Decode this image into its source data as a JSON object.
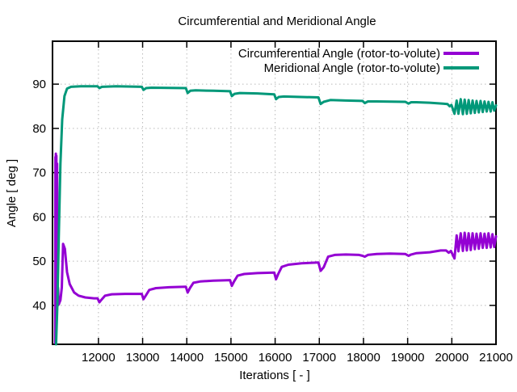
{
  "chart_data": {
    "type": "line",
    "title": "Circumferential and Meridional Angle",
    "xlabel": "Iterations [ - ]",
    "ylabel": "Angle [ deg ]",
    "legend_position": "top-right-inside",
    "grid": "dotted",
    "background_color": "#ffffff",
    "xlim": [
      10960,
      21000
    ],
    "ylim": [
      31.2,
      99.7
    ],
    "x_ticks": [
      12000,
      13000,
      14000,
      15000,
      16000,
      17000,
      18000,
      19000,
      20000,
      21000
    ],
    "y_ticks": [
      40,
      50,
      60,
      70,
      80,
      90
    ],
    "series": [
      {
        "name": "Circumferential Angle (rotor-to-volute)",
        "color": "#9400d3",
        "points": [
          [
            11020,
            31.5
          ],
          [
            11025,
            73.5
          ],
          [
            11030,
            42
          ],
          [
            11035,
            74.3
          ],
          [
            11040,
            41
          ],
          [
            11048,
            73.8
          ],
          [
            11055,
            40.3
          ],
          [
            11065,
            72
          ],
          [
            11072,
            40.5
          ],
          [
            11085,
            44
          ],
          [
            11100,
            40.2
          ],
          [
            11140,
            41.2
          ],
          [
            11170,
            44
          ],
          [
            11200,
            53.9
          ],
          [
            11240,
            52.8
          ],
          [
            11290,
            47.5
          ],
          [
            11350,
            44.8
          ],
          [
            11450,
            42.9
          ],
          [
            11550,
            42.2
          ],
          [
            11700,
            41.8
          ],
          [
            11900,
            41.6
          ],
          [
            11980,
            41.6
          ],
          [
            12020,
            40.7
          ],
          [
            12070,
            41.3
          ],
          [
            12150,
            42.2
          ],
          [
            12300,
            42.5
          ],
          [
            12600,
            42.6
          ],
          [
            12980,
            42.6
          ],
          [
            13020,
            41.4
          ],
          [
            13070,
            42.2
          ],
          [
            13150,
            43.5
          ],
          [
            13300,
            43.9
          ],
          [
            13600,
            44.1
          ],
          [
            13980,
            44.2
          ],
          [
            14020,
            42.9
          ],
          [
            14070,
            43.9
          ],
          [
            14150,
            45.1
          ],
          [
            14300,
            45.4
          ],
          [
            14600,
            45.6
          ],
          [
            14980,
            45.7
          ],
          [
            15020,
            44.4
          ],
          [
            15070,
            45.4
          ],
          [
            15150,
            46.7
          ],
          [
            15300,
            47.1
          ],
          [
            15600,
            47.3
          ],
          [
            15980,
            47.4
          ],
          [
            16020,
            45.9
          ],
          [
            16070,
            47.1
          ],
          [
            16150,
            48.7
          ],
          [
            16300,
            49.2
          ],
          [
            16600,
            49.5
          ],
          [
            16980,
            49.7
          ],
          [
            17030,
            47.8
          ],
          [
            17100,
            48.6
          ],
          [
            17200,
            51.0
          ],
          [
            17350,
            51.4
          ],
          [
            17600,
            51.5
          ],
          [
            17900,
            51.4
          ],
          [
            17980,
            51.2
          ],
          [
            18030,
            51.0
          ],
          [
            18100,
            51.4
          ],
          [
            18300,
            51.6
          ],
          [
            18600,
            51.7
          ],
          [
            18950,
            51.6
          ],
          [
            19020,
            51.2
          ],
          [
            19080,
            51.5
          ],
          [
            19200,
            51.8
          ],
          [
            19500,
            52.0
          ],
          [
            19750,
            52.4
          ],
          [
            19870,
            52.4
          ],
          [
            19930,
            51.9
          ],
          [
            19980,
            52.3
          ],
          [
            20060,
            50.6
          ],
          [
            20110,
            55.8
          ],
          [
            20150,
            52.2
          ],
          [
            20200,
            56.3
          ],
          [
            20250,
            52.3
          ],
          [
            20290,
            56.4
          ],
          [
            20340,
            52.4
          ],
          [
            20380,
            56.3
          ],
          [
            20430,
            52.5
          ],
          [
            20470,
            56.3
          ],
          [
            20520,
            52.7
          ],
          [
            20560,
            56.2
          ],
          [
            20610,
            52.8
          ],
          [
            20650,
            56.3
          ],
          [
            20700,
            53.0
          ],
          [
            20740,
            56.2
          ],
          [
            20790,
            53.0
          ],
          [
            20830,
            56.3
          ],
          [
            20880,
            53.1
          ],
          [
            20920,
            56.1
          ],
          [
            20960,
            53.2
          ],
          [
            21000,
            55.6
          ]
        ]
      },
      {
        "name": "Meridional Angle (rotor-to-volute)",
        "color": "#009879",
        "points": [
          [
            11040,
            31.2
          ],
          [
            11070,
            40
          ],
          [
            11100,
            55
          ],
          [
            11140,
            72
          ],
          [
            11180,
            82
          ],
          [
            11230,
            87.3
          ],
          [
            11290,
            89.0
          ],
          [
            11380,
            89.4
          ],
          [
            11600,
            89.5
          ],
          [
            11980,
            89.5
          ],
          [
            12020,
            89.1
          ],
          [
            12080,
            89.4
          ],
          [
            12400,
            89.5
          ],
          [
            12980,
            89.4
          ],
          [
            13020,
            88.7
          ],
          [
            13080,
            89.1
          ],
          [
            13200,
            89.2
          ],
          [
            13980,
            89.1
          ],
          [
            14020,
            88.0
          ],
          [
            14080,
            88.5
          ],
          [
            14200,
            88.6
          ],
          [
            14600,
            88.5
          ],
          [
            14980,
            88.4
          ],
          [
            15020,
            87.3
          ],
          [
            15080,
            87.8
          ],
          [
            15200,
            88.0
          ],
          [
            15600,
            87.9
          ],
          [
            15980,
            87.7
          ],
          [
            16020,
            86.6
          ],
          [
            16080,
            87.1
          ],
          [
            16200,
            87.2
          ],
          [
            16600,
            87.1
          ],
          [
            16980,
            87.0
          ],
          [
            17030,
            85.5
          ],
          [
            17100,
            86.0
          ],
          [
            17250,
            86.4
          ],
          [
            17600,
            86.3
          ],
          [
            17980,
            86.2
          ],
          [
            18030,
            85.7
          ],
          [
            18100,
            86.1
          ],
          [
            18300,
            86.1
          ],
          [
            18950,
            86.0
          ],
          [
            19020,
            85.6
          ],
          [
            19080,
            85.9
          ],
          [
            19200,
            85.9
          ],
          [
            19500,
            85.8
          ],
          [
            19800,
            85.6
          ],
          [
            19900,
            85.5
          ],
          [
            19950,
            85.0
          ],
          [
            19990,
            85.3
          ],
          [
            20060,
            83.3
          ],
          [
            20110,
            86.3
          ],
          [
            20150,
            83.3
          ],
          [
            20200,
            86.6
          ],
          [
            20250,
            83.2
          ],
          [
            20290,
            86.5
          ],
          [
            20340,
            83.3
          ],
          [
            20380,
            86.4
          ],
          [
            20430,
            83.4
          ],
          [
            20470,
            86.3
          ],
          [
            20520,
            83.5
          ],
          [
            20560,
            86.2
          ],
          [
            20610,
            83.6
          ],
          [
            20650,
            86.2
          ],
          [
            20700,
            83.7
          ],
          [
            20740,
            86.1
          ],
          [
            20790,
            83.8
          ],
          [
            20830,
            86.0
          ],
          [
            20880,
            83.8
          ],
          [
            20920,
            85.9
          ],
          [
            20960,
            84.0
          ],
          [
            21000,
            85.2
          ]
        ]
      }
    ]
  }
}
